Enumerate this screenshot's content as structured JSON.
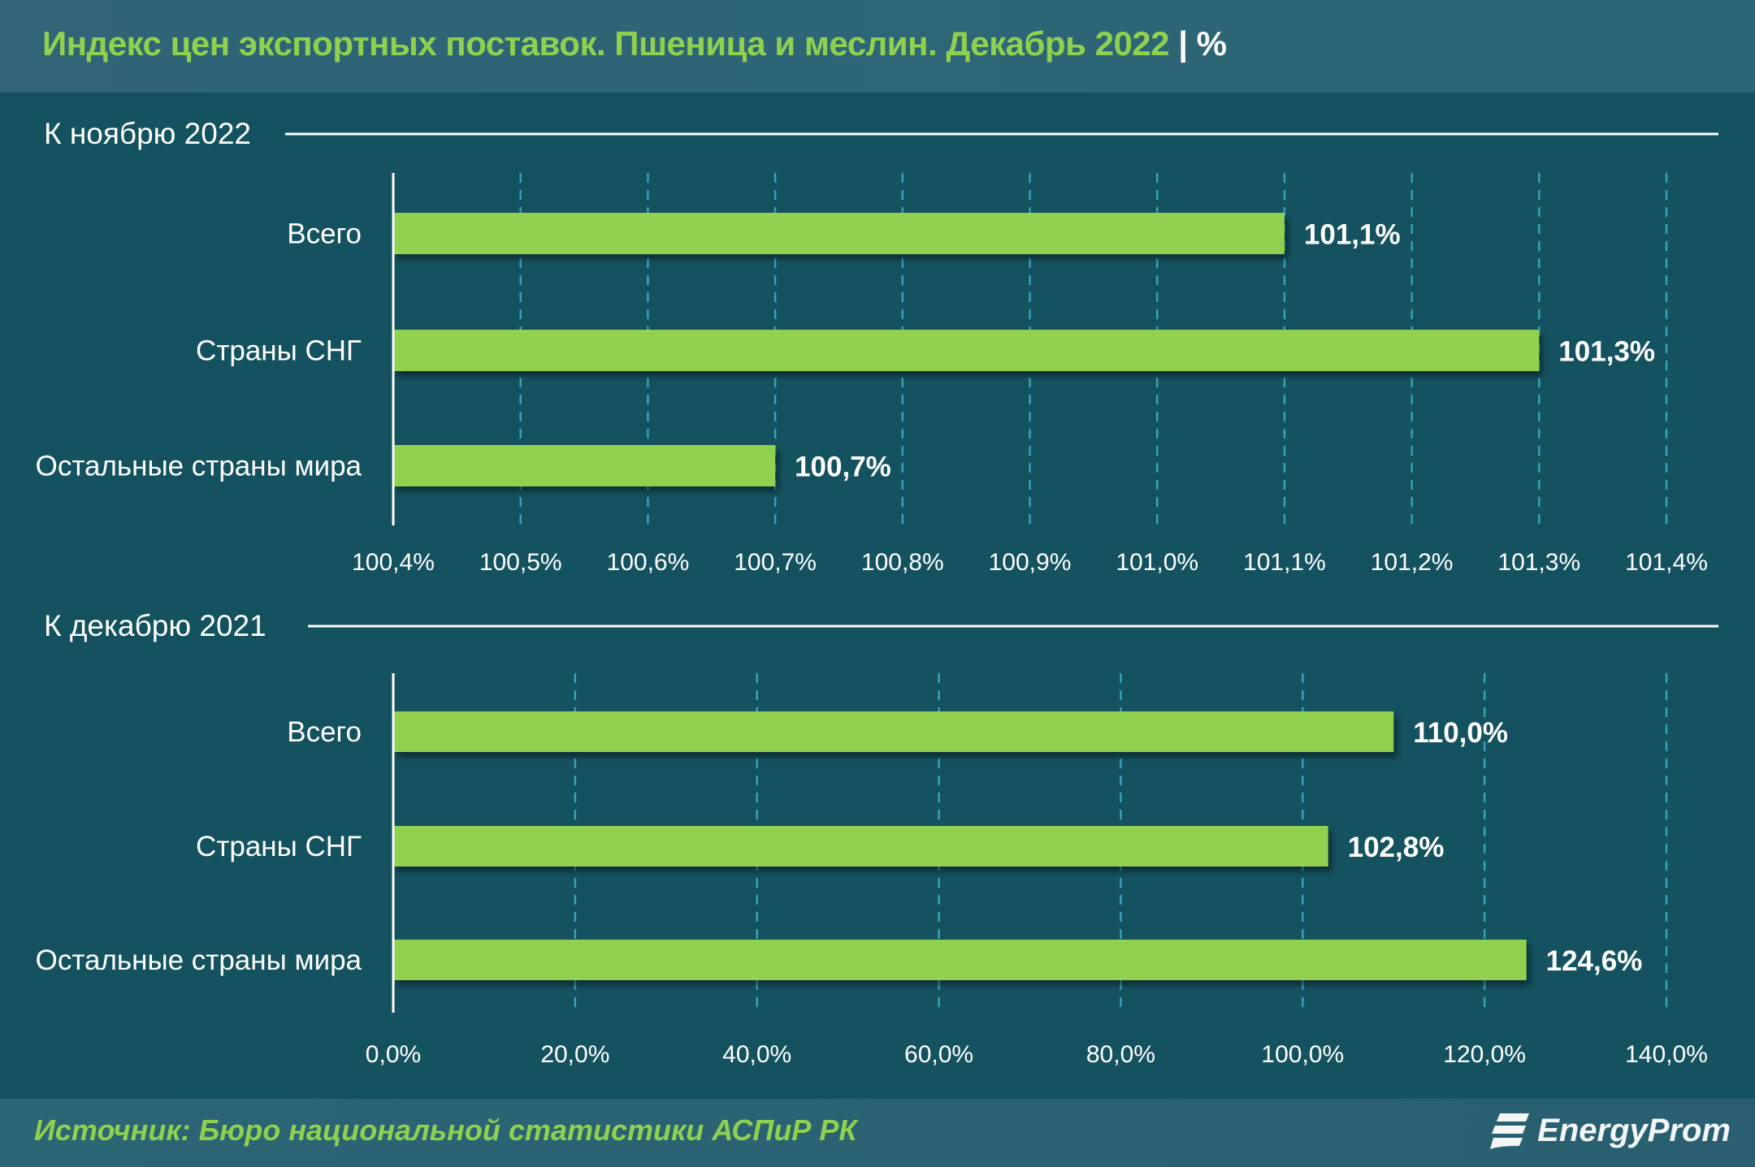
{
  "header": {
    "title": "Индекс цен экспортных поставок. Пшеница и меслин. Декабрь 2022",
    "separator": "|",
    "unit": "%"
  },
  "footer": {
    "source": "Источник: Бюро национальной статистики АСПиР РК",
    "logo_text": "EnergyProm"
  },
  "colors": {
    "bar": "#92d050",
    "background": "#14525f",
    "header": "#2f6576",
    "title": "#8fd14f",
    "grid": "#3aa0b5"
  },
  "chart_data": [
    {
      "type": "bar",
      "orientation": "horizontal",
      "section_label": "К ноябрю 2022",
      "categories": [
        "Всего",
        "Страны СНГ",
        "Остальные страны мира"
      ],
      "values": [
        101.1,
        101.3,
        100.7
      ],
      "value_labels": [
        "101,1%",
        "101,3%",
        "100,7%"
      ],
      "xlim": [
        100.4,
        101.4
      ],
      "ticks": [
        "100,4%",
        "100,5%",
        "100,6%",
        "100,7%",
        "100,8%",
        "100,9%",
        "101,0%",
        "101,1%",
        "101,2%",
        "101,3%",
        "101,4%"
      ],
      "grid": true
    },
    {
      "type": "bar",
      "orientation": "horizontal",
      "section_label": "К декабрю 2021",
      "categories": [
        "Всего",
        "Страны СНГ",
        "Остальные страны мира"
      ],
      "values": [
        110.0,
        102.8,
        124.6
      ],
      "value_labels": [
        "110,0%",
        "102,8%",
        "124,6%"
      ],
      "xlim": [
        0,
        140
      ],
      "ticks": [
        "0,0%",
        "20,0%",
        "40,0%",
        "60,0%",
        "80,0%",
        "100,0%",
        "120,0%",
        "140,0%"
      ],
      "grid": true
    }
  ]
}
